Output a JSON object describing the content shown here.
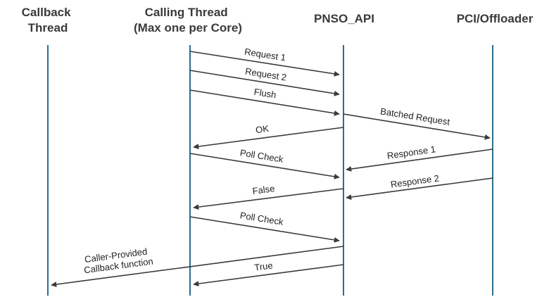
{
  "participants": [
    {
      "id": "callback",
      "lines": [
        "Callback",
        "Thread"
      ]
    },
    {
      "id": "calling",
      "lines": [
        "Calling Thread",
        "(Max one per Core)"
      ]
    },
    {
      "id": "pnso",
      "lines": [
        "PNSO_API"
      ]
    },
    {
      "id": "pci",
      "lines": [
        "PCI/Offloader"
      ]
    }
  ],
  "lifeline_color": "#2c6e8e",
  "arrow_color": "#3a3a3a",
  "messages": [
    {
      "from": "calling",
      "to": "pnso",
      "lines": [
        "Request  1"
      ]
    },
    {
      "from": "calling",
      "to": "pnso",
      "lines": [
        "Request  2"
      ]
    },
    {
      "from": "calling",
      "to": "pnso",
      "lines": [
        "Flush"
      ]
    },
    {
      "from": "pnso",
      "to": "pci",
      "lines": [
        "Batched Request"
      ]
    },
    {
      "from": "pnso",
      "to": "calling",
      "lines": [
        "OK"
      ]
    },
    {
      "from": "calling",
      "to": "pnso",
      "lines": [
        "Poll Check"
      ]
    },
    {
      "from": "pci",
      "to": "pnso",
      "lines": [
        "Response 1"
      ]
    },
    {
      "from": "pnso",
      "to": "calling",
      "lines": [
        "False"
      ]
    },
    {
      "from": "pci",
      "to": "pnso",
      "lines": [
        "Response 2"
      ]
    },
    {
      "from": "calling",
      "to": "pnso",
      "lines": [
        "Poll Check"
      ]
    },
    {
      "from": "pnso",
      "to": "callback",
      "lines": [
        "Caller-Provided",
        "Callback function"
      ]
    },
    {
      "from": "pnso",
      "to": "calling",
      "lines": [
        "True"
      ]
    }
  ]
}
